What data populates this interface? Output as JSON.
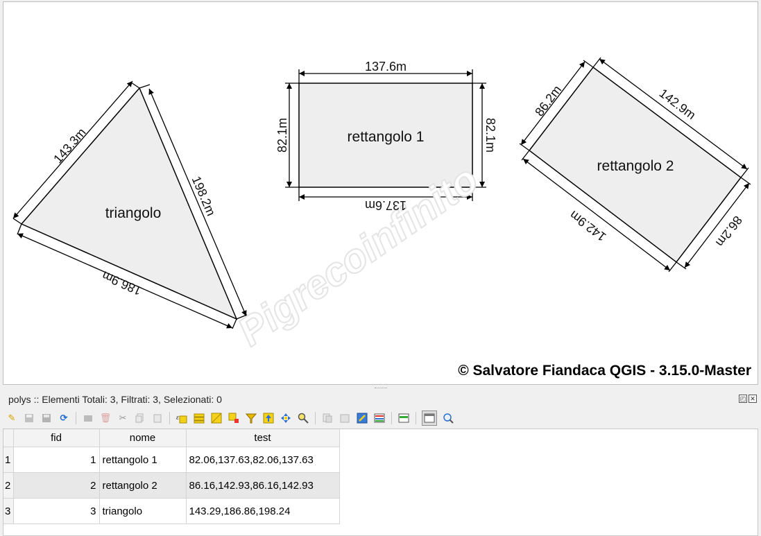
{
  "map": {
    "watermark": "Pigrecoinfinito",
    "copyright": "© Salvatore Fiandaca QGIS - 3.15.0-Master",
    "features": [
      {
        "label": "triangolo",
        "edges": [
          "143.3m",
          "198.2m",
          "186.9m"
        ]
      },
      {
        "label": "rettangolo 1",
        "edges": [
          "137.6m",
          "82.1m",
          "137.6m",
          "82.1m"
        ]
      },
      {
        "label": "rettangolo 2",
        "edges": [
          "142.9m",
          "86.2m",
          "142.9m",
          "86.2m"
        ]
      }
    ]
  },
  "panel": {
    "title": "polys :: Elementi Totali: 3, Filtrati: 3, Selezionati: 0",
    "toolbar_icons": [
      "pencil-icon",
      "save-edits-icon",
      "floppy-icon",
      "refresh-icon",
      "add-feature-icon",
      "delete-feature-icon",
      "cut-icon",
      "copy-icon",
      "paste-icon",
      "select-expression-icon",
      "select-all-icon",
      "invert-selection-icon",
      "deselect-icon",
      "filter-icon",
      "move-top-icon",
      "pan-to-icon",
      "zoom-to-icon",
      "copy-rows-icon",
      "paste-rows-icon",
      "field-calculator-icon",
      "conditional-format-icon",
      "organize-columns-icon",
      "dock-icon",
      "actions-icon"
    ]
  },
  "table": {
    "columns": [
      "fid",
      "nome",
      "test"
    ],
    "rows": [
      {
        "id": "1",
        "fid": "1",
        "nome": "rettangolo 1",
        "test": "82.06,137.63,82.06,137.63"
      },
      {
        "id": "2",
        "fid": "2",
        "nome": "rettangolo 2",
        "test": "86.16,142.93,86.16,142.93"
      },
      {
        "id": "3",
        "fid": "3",
        "nome": "triangolo",
        "test": "143.29,186.86,198.24"
      }
    ]
  }
}
